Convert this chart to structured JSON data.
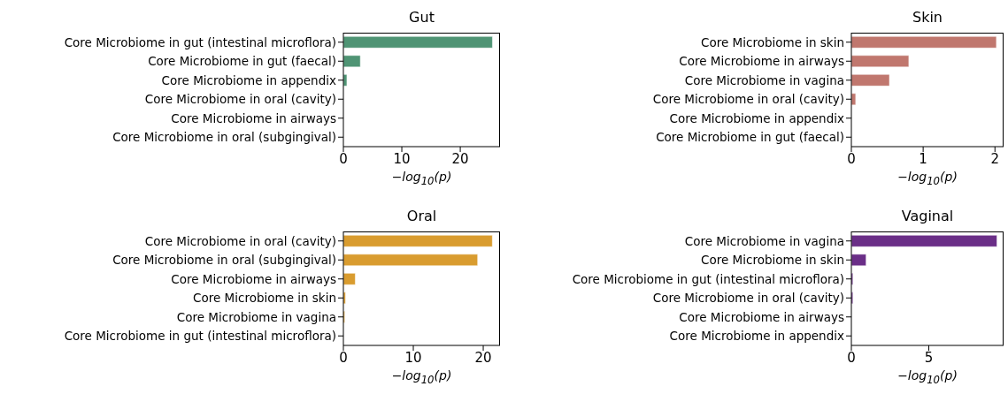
{
  "chart_data": [
    {
      "type": "bar",
      "orientation": "horizontal",
      "title": "Gut",
      "xlabel": "−log$_{10}$(p)",
      "categories": [
        "Core Microbiome in gut (intestinal microflora)",
        "Core Microbiome in gut (faecal)",
        "Core Microbiome in appendix",
        "Core Microbiome in oral (cavity)",
        "Core Microbiome in airways",
        "Core Microbiome in oral (subgingival)"
      ],
      "values": [
        25.5,
        2.9,
        0.6,
        0,
        0,
        0
      ],
      "color": "#4f9474",
      "xlim": [
        0,
        26.8
      ],
      "xticks": [
        0,
        10,
        20
      ]
    },
    {
      "type": "bar",
      "orientation": "horizontal",
      "title": "Skin",
      "xlabel": "−log$_{10}$(p)",
      "categories": [
        "Core Microbiome in skin",
        "Core Microbiome in airways",
        "Core Microbiome in vagina",
        "Core Microbiome in oral (cavity)",
        "Core Microbiome in appendix",
        "Core Microbiome in gut (faecal)"
      ],
      "values": [
        2.02,
        0.8,
        0.53,
        0.06,
        0,
        0
      ],
      "color": "#c0776e",
      "xlim": [
        0,
        2.12
      ],
      "xticks": [
        0,
        1,
        2
      ]
    },
    {
      "type": "bar",
      "orientation": "horizontal",
      "title": "Oral",
      "xlabel": "−log$_{10}$(p)",
      "categories": [
        "Core Microbiome in oral (cavity)",
        "Core Microbiome in oral (subgingival)",
        "Core Microbiome in airways",
        "Core Microbiome in skin",
        "Core Microbiome in vagina",
        "Core Microbiome in gut (intestinal microflora)"
      ],
      "values": [
        21.3,
        19.2,
        1.7,
        0.3,
        0.2,
        0
      ],
      "color": "#d99c2f",
      "xlim": [
        0,
        22.4
      ],
      "xticks": [
        0,
        10,
        20
      ]
    },
    {
      "type": "bar",
      "orientation": "horizontal",
      "title": "Vaginal",
      "xlabel": "−log$_{10}$(p)",
      "categories": [
        "Core Microbiome in vagina",
        "Core Microbiome in skin",
        "Core Microbiome in gut (intestinal microflora)",
        "Core Microbiome in oral (cavity)",
        "Core Microbiome in airways",
        "Core Microbiome in appendix"
      ],
      "values": [
        9.4,
        0.95,
        0.1,
        0.1,
        0,
        0
      ],
      "color": "#6a2e87",
      "xlim": [
        0,
        9.83
      ],
      "xticks": [
        0,
        5
      ]
    }
  ]
}
